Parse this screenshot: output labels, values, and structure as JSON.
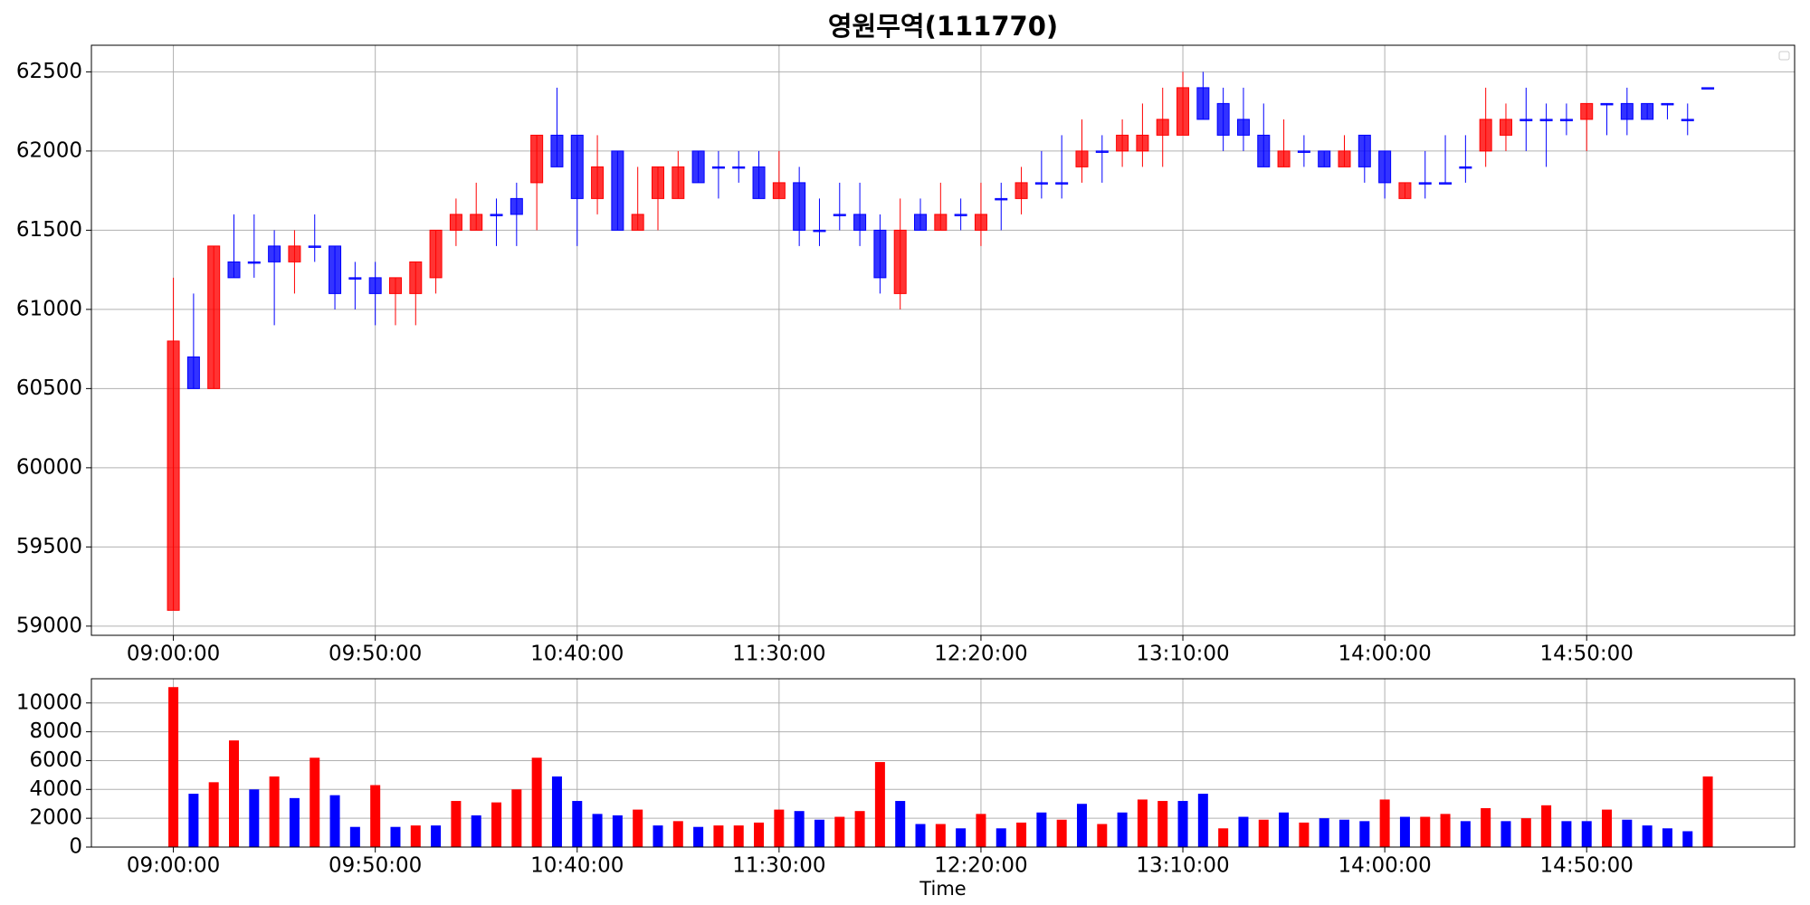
{
  "chart_data": [
    {
      "type": "candlestick",
      "title": "영원무역(111770)",
      "categories": [
        "09:00:00",
        null,
        null,
        null,
        null,
        null,
        null,
        null,
        null,
        null,
        "09:50:00",
        null,
        null,
        null,
        null,
        null,
        null,
        null,
        null,
        null,
        "10:40:00",
        null,
        null,
        null,
        null,
        null,
        null,
        null,
        null,
        null,
        "11:30:00",
        null,
        null,
        null,
        null,
        null,
        null,
        null,
        null,
        null,
        "12:20:00",
        null,
        null,
        null,
        null,
        null,
        null,
        null,
        null,
        null,
        "13:10:00",
        null,
        null,
        null,
        null,
        null,
        null,
        null,
        null,
        null,
        "14:00:00",
        null,
        null,
        null,
        null,
        null,
        null,
        null,
        null,
        null,
        "14:50:00",
        null,
        null,
        null,
        null,
        null,
        null
      ],
      "open": [
        59100,
        60700,
        60500,
        61300,
        61300,
        61400,
        61300,
        61400,
        61400,
        61200,
        61200,
        61100,
        61100,
        61200,
        61500,
        61500,
        61600,
        61700,
        61800,
        62100,
        62100,
        61700,
        62000,
        61500,
        61700,
        61700,
        62000,
        61900,
        61900,
        61900,
        61700,
        61800,
        61500,
        61600,
        61600,
        61500,
        61100,
        61600,
        61500,
        61600,
        61500,
        61700,
        61700,
        61800,
        61800,
        61900,
        62000,
        62000,
        62000,
        62100,
        62100,
        62400,
        62300,
        62200,
        62100,
        61900,
        62000,
        62000,
        61900,
        62100,
        62000,
        61700,
        61800,
        61800,
        61900,
        62000,
        62100,
        62200,
        62200,
        62200,
        62200,
        62300,
        62300,
        62300,
        62300,
        62200,
        62400
      ],
      "high": [
        61200,
        61100,
        61400,
        61600,
        61600,
        61500,
        61500,
        61600,
        61400,
        61300,
        61300,
        61200,
        61300,
        61500,
        61700,
        61800,
        61700,
        61800,
        62100,
        62400,
        62100,
        62100,
        62000,
        61900,
        61900,
        62000,
        62000,
        62000,
        62000,
        62000,
        62000,
        61900,
        61700,
        61800,
        61800,
        61600,
        61700,
        61700,
        61800,
        61700,
        61800,
        61800,
        61900,
        62000,
        62100,
        62200,
        62100,
        62200,
        62300,
        62400,
        62500,
        62500,
        62400,
        62400,
        62300,
        62200,
        62100,
        62000,
        62100,
        62100,
        62000,
        61800,
        62000,
        62100,
        62100,
        62400,
        62300,
        62400,
        62300,
        62300,
        62300,
        62300,
        62400,
        62300,
        62300,
        62300,
        62400
      ],
      "low": [
        59100,
        60500,
        60500,
        61200,
        61200,
        60900,
        61100,
        61300,
        61000,
        61000,
        60900,
        60900,
        60900,
        61100,
        61400,
        61500,
        61400,
        61400,
        61500,
        61900,
        61400,
        61600,
        61500,
        61500,
        61500,
        61700,
        61800,
        61700,
        61800,
        61700,
        61700,
        61400,
        61400,
        61500,
        61400,
        61100,
        61000,
        61500,
        61500,
        61500,
        61400,
        61500,
        61600,
        61700,
        61700,
        61800,
        61800,
        61900,
        61900,
        61900,
        62100,
        62200,
        62000,
        62000,
        61900,
        61900,
        61900,
        61900,
        61900,
        61800,
        61700,
        61700,
        61700,
        61800,
        61800,
        61900,
        62000,
        62000,
        61900,
        62100,
        62000,
        62100,
        62100,
        62200,
        62200,
        62100,
        62400
      ],
      "close": [
        60800,
        60500,
        61400,
        61200,
        61300,
        61300,
        61400,
        61400,
        61100,
        61200,
        61100,
        61200,
        61300,
        61500,
        61600,
        61600,
        61600,
        61600,
        62100,
        61900,
        61700,
        61900,
        61500,
        61600,
        61900,
        61900,
        61800,
        61900,
        61900,
        61700,
        61800,
        61500,
        61500,
        61600,
        61500,
        61200,
        61500,
        61500,
        61600,
        61600,
        61600,
        61700,
        61800,
        61800,
        61800,
        62000,
        62000,
        62100,
        62100,
        62200,
        62400,
        62200,
        62100,
        62100,
        61900,
        62000,
        62000,
        61900,
        62000,
        61900,
        61800,
        61800,
        61800,
        61800,
        61900,
        62200,
        62200,
        62200,
        62200,
        62200,
        62300,
        62300,
        62200,
        62200,
        62300,
        62200,
        62400
      ],
      "up_color": "#ff0000",
      "down_color": "#0000ff",
      "xlim": [
        -4.06,
        80.3
      ],
      "ylim": [
        58942,
        62668
      ],
      "yticks": [
        59000,
        59500,
        60000,
        60500,
        61000,
        61500,
        62000,
        62500
      ],
      "grid": true,
      "legend": "upper right"
    },
    {
      "type": "bar",
      "xlabel": "Time",
      "categories": [
        "09:00:00",
        null,
        null,
        null,
        null,
        null,
        null,
        null,
        null,
        null,
        "09:50:00",
        null,
        null,
        null,
        null,
        null,
        null,
        null,
        null,
        null,
        "10:40:00",
        null,
        null,
        null,
        null,
        null,
        null,
        null,
        null,
        null,
        "11:30:00",
        null,
        null,
        null,
        null,
        null,
        null,
        null,
        null,
        null,
        "12:20:00",
        null,
        null,
        null,
        null,
        null,
        null,
        null,
        null,
        null,
        "13:10:00",
        null,
        null,
        null,
        null,
        null,
        null,
        null,
        null,
        null,
        "14:00:00",
        null,
        null,
        null,
        null,
        null,
        null,
        null,
        null,
        null,
        "14:50:00",
        null,
        null,
        null,
        null,
        null,
        null
      ],
      "values": [
        11100,
        3700,
        4500,
        7400,
        4000,
        4900,
        3400,
        6200,
        3600,
        1400,
        4300,
        1400,
        1500,
        1500,
        3200,
        2200,
        3100,
        4000,
        6200,
        4900,
        3200,
        2300,
        2200,
        2600,
        1500,
        1800,
        1400,
        1500,
        1500,
        1700,
        2600,
        2500,
        1900,
        2100,
        2500,
        5900,
        3200,
        1600,
        1600,
        1300,
        2300,
        1300,
        1700,
        2400,
        1900,
        3000,
        1600,
        2400,
        3300,
        3200,
        3200,
        3700,
        1300,
        2100,
        1900,
        2400,
        1700,
        2000,
        1900,
        1800,
        3300,
        2100,
        2100,
        2300,
        1800,
        2700,
        1800,
        2000,
        2900,
        1800,
        1800,
        2600,
        1900,
        1500,
        1300,
        1100,
        4900
      ],
      "colors": [
        "red",
        "blue",
        "red",
        "red",
        "blue",
        "red",
        "blue",
        "red",
        "blue",
        "blue",
        "red",
        "blue",
        "red",
        "blue",
        "red",
        "blue",
        "red",
        "red",
        "red",
        "blue",
        "blue",
        "blue",
        "blue",
        "red",
        "blue",
        "red",
        "blue",
        "red",
        "red",
        "red",
        "red",
        "blue",
        "blue",
        "red",
        "red",
        "red",
        "blue",
        "blue",
        "red",
        "blue",
        "red",
        "blue",
        "red",
        "blue",
        "red",
        "blue",
        "red",
        "blue",
        "red",
        "red",
        "blue",
        "blue",
        "red",
        "blue",
        "red",
        "blue",
        "red",
        "blue",
        "blue",
        "blue",
        "red",
        "blue",
        "red",
        "red",
        "blue",
        "red",
        "blue",
        "red",
        "red",
        "blue",
        "blue",
        "red",
        "blue",
        "blue",
        "blue",
        "blue",
        "red"
      ],
      "xlim": [
        -4.06,
        80.3
      ],
      "ylim": [
        0,
        11680
      ],
      "yticks": [
        0,
        2000,
        4000,
        6000,
        8000,
        10000
      ],
      "grid": true
    }
  ]
}
